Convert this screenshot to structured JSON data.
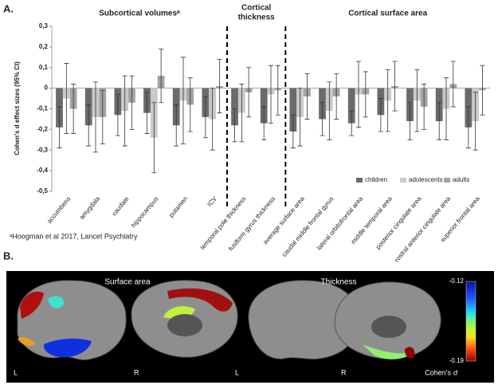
{
  "panel_a": "A.",
  "panel_b": "B.",
  "chart_data": {
    "type": "bar",
    "ylabel": "Cohen's d effect sizes (95% CI)",
    "sections": [
      {
        "lines": [
          "Subcortical volumesᵃ"
        ]
      },
      {
        "lines": [
          "Cortical",
          "thickness"
        ]
      },
      {
        "lines": [
          "Cortical surface area"
        ]
      }
    ],
    "categories": [
      "accumbens",
      "amygdala",
      "caudate",
      "hippocampus",
      "putamen",
      "ICV",
      "temporal pole thickness",
      "fusiform gyrus thickness",
      "average surface area",
      "caudal middle frontal gyrus",
      "lateral orbitofrontal area",
      "middle temporal area",
      "posterior cingulate area",
      "rostral anterior cingulate area",
      "superior frontal area"
    ],
    "series": [
      {
        "name": "children",
        "color": "#6b6b6b",
        "values": [
          -0.19,
          -0.18,
          -0.13,
          -0.12,
          -0.18,
          -0.14,
          -0.18,
          -0.17,
          -0.21,
          -0.15,
          -0.17,
          -0.13,
          -0.16,
          -0.16,
          -0.19
        ],
        "errors": [
          0.1,
          0.1,
          0.1,
          0.1,
          0.1,
          0.1,
          0.08,
          0.08,
          0.08,
          0.08,
          0.06,
          0.08,
          0.09,
          0.09,
          0.1
        ]
      },
      {
        "name": "adolescents",
        "color": "#c9c9c9",
        "values": [
          -0.05,
          -0.14,
          -0.11,
          -0.24,
          -0.06,
          -0.15,
          -0.12,
          -0.03,
          -0.14,
          -0.11,
          -0.03,
          -0.06,
          -0.06,
          -0.1,
          -0.16
        ],
        "errors": [
          0.17,
          0.17,
          0.17,
          0.17,
          0.21,
          0.15,
          0.14,
          0.14,
          0.14,
          0.14,
          0.16,
          0.15,
          0.15,
          0.15,
          0.14
        ]
      },
      {
        "name": "adults",
        "color": "#a3a3a3",
        "values": [
          -0.1,
          -0.14,
          -0.07,
          0.06,
          -0.08,
          0.01,
          -0.02,
          -0.01,
          -0.04,
          -0.04,
          -0.03,
          0.01,
          -0.09,
          0.02,
          -0.01
        ],
        "errors": [
          0.12,
          0.13,
          0.13,
          0.13,
          0.13,
          0.13,
          0.12,
          0.12,
          0.11,
          0.11,
          0.11,
          0.12,
          0.11,
          0.11,
          0.12
        ]
      }
    ],
    "ylim": [
      -0.5,
      0.3
    ],
    "yticks": [
      {
        "value": 0.3,
        "label": "0,3"
      },
      {
        "value": 0.2,
        "label": "0,2"
      },
      {
        "value": 0.1,
        "label": "0,1"
      },
      0,
      {
        "value": -0.1,
        "label": "-0,1"
      },
      {
        "value": -0.2,
        "label": "-0,2"
      },
      {
        "value": -0.3,
        "label": "-0,3"
      },
      {
        "value": -0.4,
        "label": "-0,4"
      },
      {
        "value": -0.5,
        "label": "-0,5"
      }
    ],
    "grid": false,
    "legend": "lower right",
    "footnote": "ᵃHoogman et al 2017, Lancet Psychiatry"
  },
  "brain_maps": {
    "titles": [
      "Surface area",
      "Thickness"
    ],
    "hemispheres": [
      "L",
      "R",
      "L",
      "R"
    ],
    "colorbar": {
      "top": "-0.12",
      "bottom": "-0.19",
      "label": "Cohen's",
      "label_italic": "d"
    }
  }
}
